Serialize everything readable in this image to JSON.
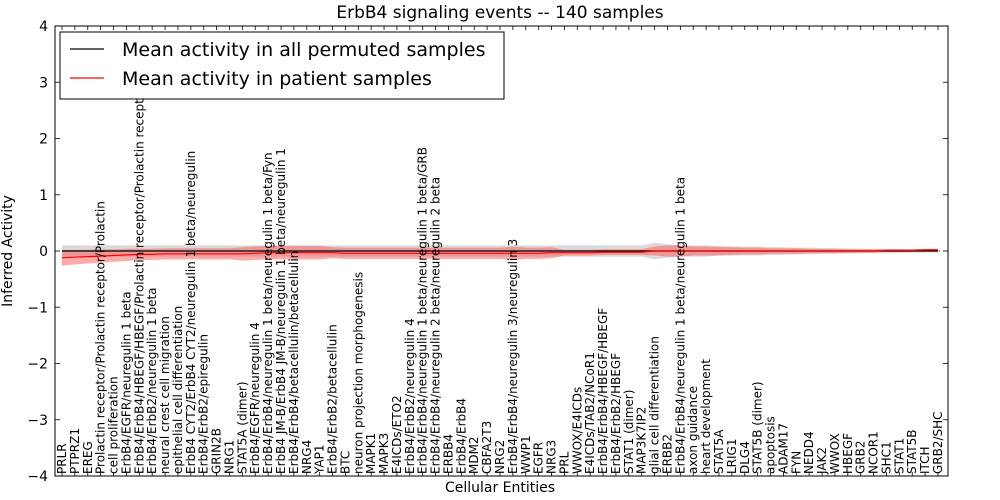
{
  "chart_data": {
    "type": "line",
    "title": "ErbB4 signaling events -- 140 samples",
    "xlabel": "Cellular Entities",
    "ylabel": "Inferred Activity",
    "ylim": [
      -4,
      4
    ],
    "yticks": [
      4,
      3,
      2,
      1,
      0,
      -1,
      -2,
      -3,
      -4
    ],
    "yticklabels": [
      "4",
      "3",
      "2",
      "1",
      "0",
      "−1",
      "−2",
      "−3",
      "−4"
    ],
    "legend_position": "top-left",
    "categories": [
      "PRLR",
      "PTPRZ1",
      "EREG",
      "Prolactin receptor/Prolactin receptor/Prolactin",
      "cell proliferation",
      "ErbB4/EGFR/neuregulin 1 beta",
      "ErbB4/ErbB4/HBEGF/HBEGF/Prolactin receptor/Prolactin receptor/Prolactin",
      "ErbB4/ErbB2/neuregulin 1 beta",
      "neural crest cell migration",
      "epithelial cell differentiation",
      "ErbB4 CYT2/ErbB4 CYT2/neuregulin 1 beta/neuregulin",
      "ErbB4/ErbB2/epiregulin",
      "GRIN2B",
      "NRG1",
      "STAT5A (dimer)",
      "ErbB4/EGFR/neuregulin 4",
      "ErbB4/ErbB4/neuregulin 1 beta/neuregulin 1 beta/Fyn",
      "ErbB4 JM-B/ErbB4 JM-B/neuregulin 1 beta/neuregulin 1",
      "ErbB4/ErbB4/betacellulin/betacellulin",
      "NRG4",
      "YAP1",
      "ErbB4/ErbB2/betacellulin",
      "BTC",
      "neuron projection morphogenesis",
      "MAPK1",
      "MAPK3",
      "E4ICDs/ETO2",
      "ErbB4/ErbB2/neuregulin 4",
      "ErbB4/ErbB4/neuregulin 1 beta/neuregulin 1 beta/GRB",
      "ErbB4/ErbB4/neuregulin 2 beta/neuregulin 2 beta",
      "ERBB4",
      "ErbB4/ErbB4",
      "MDM2",
      "CBFA2T3",
      "NRG2",
      "ErbB4/ErbB4/neuregulin 3/neuregulin 3",
      "WWP1",
      "EGFR",
      "NRG3",
      "PRL",
      "WWOX/E4ICDs",
      "E4ICDs/TAB2/NCoR1",
      "ErbB4/ErbB4/HBEGF/HBEGF",
      "ErbB4/ErbB2/HBEGF",
      "STAT1 (dimer)",
      "MAP3K7IP2",
      "glial cell differentiation",
      "ERBB2",
      "ErbB4/ErbB4/neuregulin 1 beta/neuregulin 1 beta",
      "axon guidance",
      "heart development",
      "STAT5A",
      "LRIG1",
      "DLG4",
      "STAT5B (dimer)",
      "apoptosis",
      "ADAM17",
      "FYN",
      "NEDD4",
      "JAK2",
      "WWOX",
      "HBEGF",
      "GRB2",
      "NCOR1",
      "SHC1",
      "STAT1",
      "STAT5B",
      "ITCH",
      "GRB2/SHC"
    ],
    "series": [
      {
        "name": "Mean activity in all permuted samples",
        "color": "#000000",
        "values": [
          0.0,
          0.0,
          0.0,
          0.0,
          0.0,
          0.0,
          0.0,
          0.0,
          0.0,
          0.0,
          0.0,
          0.0,
          0.0,
          0.0,
          0.0,
          0.0,
          0.0,
          0.0,
          0.0,
          0.0,
          0.0,
          0.0,
          0.0,
          0.0,
          0.0,
          0.0,
          0.0,
          0.0,
          0.0,
          0.0,
          0.0,
          0.0,
          0.0,
          0.0,
          0.0,
          0.0,
          0.0,
          0.0,
          0.0,
          0.0,
          0.0,
          0.0,
          0.0,
          0.0,
          0.0,
          0.0,
          0.0,
          0.0,
          0.0,
          0.0,
          0.0,
          0.0,
          0.0,
          0.0,
          0.0,
          0.0,
          0.0,
          0.0,
          0.0,
          0.0,
          0.0,
          0.0,
          0.0,
          0.0,
          0.0,
          0.0,
          0.0,
          0.0,
          0.0
        ],
        "spread": [
          0.1,
          0.1,
          0.1,
          0.1,
          0.1,
          0.1,
          0.1,
          0.1,
          0.1,
          0.1,
          0.1,
          0.1,
          0.1,
          0.1,
          0.1,
          0.1,
          0.1,
          0.1,
          0.1,
          0.1,
          0.1,
          0.1,
          0.1,
          0.1,
          0.1,
          0.1,
          0.1,
          0.1,
          0.1,
          0.1,
          0.1,
          0.1,
          0.1,
          0.1,
          0.1,
          0.1,
          0.1,
          0.1,
          0.1,
          0.1,
          0.1,
          0.1,
          0.1,
          0.1,
          0.1,
          0.1,
          0.15,
          0.12,
          0.1,
          0.1,
          0.1,
          0.08,
          0.08,
          0.08,
          0.08,
          0.07,
          0.07,
          0.06,
          0.06,
          0.05,
          0.05,
          0.05,
          0.04,
          0.04,
          0.04,
          0.04,
          0.03,
          0.03,
          0.03
        ]
      },
      {
        "name": "Mean activity in patient samples",
        "color": "#ff0000",
        "values": [
          -0.12,
          -0.11,
          -0.1,
          -0.09,
          -0.08,
          -0.07,
          -0.06,
          -0.06,
          -0.05,
          -0.05,
          -0.05,
          -0.05,
          -0.05,
          -0.05,
          -0.05,
          -0.04,
          -0.03,
          -0.03,
          -0.03,
          -0.03,
          -0.03,
          -0.03,
          -0.04,
          -0.04,
          -0.04,
          -0.04,
          -0.04,
          -0.04,
          -0.04,
          -0.04,
          -0.04,
          -0.04,
          -0.04,
          -0.04,
          -0.04,
          -0.04,
          -0.04,
          -0.04,
          -0.03,
          -0.03,
          -0.03,
          -0.03,
          -0.02,
          -0.02,
          -0.02,
          -0.02,
          0.0,
          0.0,
          0.0,
          0.0,
          0.0,
          0.0,
          0.0,
          0.0,
          0.0,
          0.0,
          0.0,
          0.0,
          0.0,
          0.0,
          0.0,
          0.0,
          0.0,
          0.0,
          0.01,
          0.01,
          0.01,
          0.02,
          0.02
        ],
        "spread": [
          0.14,
          0.13,
          0.12,
          0.12,
          0.11,
          0.11,
          0.1,
          0.1,
          0.1,
          0.1,
          0.1,
          0.1,
          0.1,
          0.1,
          0.12,
          0.12,
          0.12,
          0.12,
          0.12,
          0.12,
          0.12,
          0.1,
          0.1,
          0.1,
          0.1,
          0.1,
          0.1,
          0.1,
          0.1,
          0.1,
          0.1,
          0.1,
          0.1,
          0.1,
          0.1,
          0.12,
          0.1,
          0.1,
          0.1,
          0.05,
          0.05,
          0.05,
          0.05,
          0.05,
          0.05,
          0.05,
          0.08,
          0.1,
          0.1,
          0.08,
          0.08,
          0.08,
          0.07,
          0.06,
          0.06,
          0.05,
          0.05,
          0.05,
          0.04,
          0.04,
          0.04,
          0.03,
          0.03,
          0.03,
          0.02,
          0.02,
          0.02,
          0.02,
          0.02
        ]
      }
    ]
  }
}
